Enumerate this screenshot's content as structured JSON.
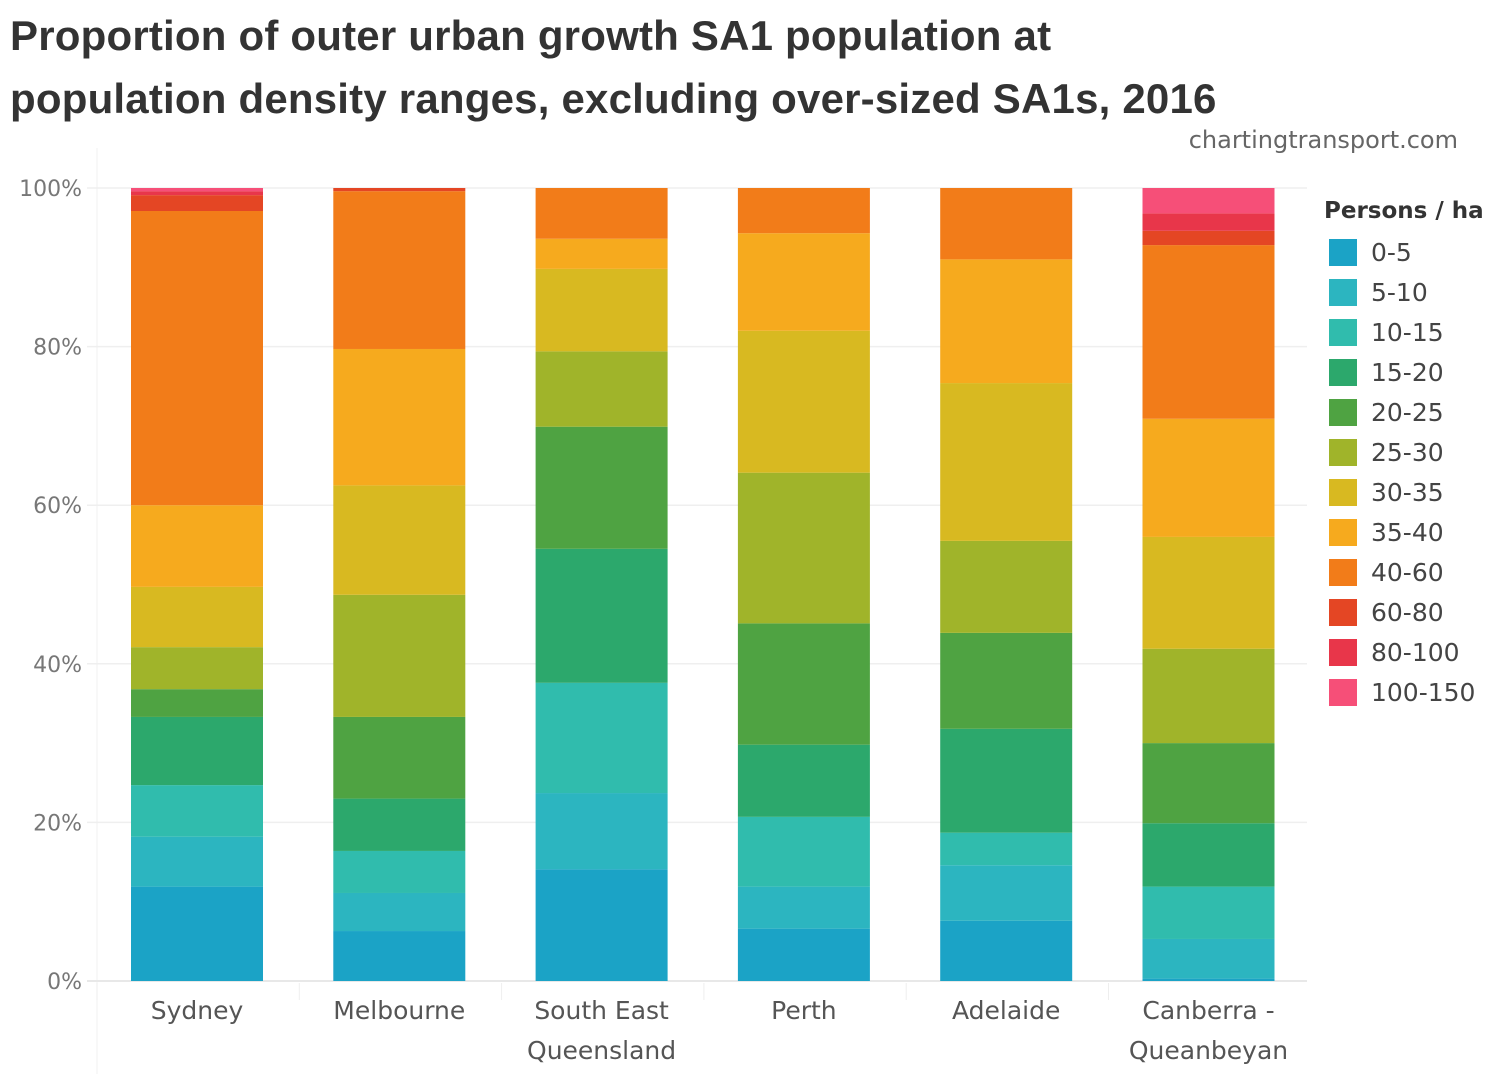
{
  "title_line1": "Proportion of outer urban growth SA1 population at",
  "title_line2": "population density ranges, excluding over-sized SA1s, 2016",
  "watermark": "chartingtransport.com",
  "chart_data": {
    "type": "bar",
    "stacked": true,
    "normalized": true,
    "title": "Proportion of outer urban growth SA1 population at population density ranges, excluding over-sized SA1s, 2016",
    "xlabel": "",
    "ylabel": "",
    "ylim": [
      0,
      100
    ],
    "yticks": [
      0,
      20,
      40,
      60,
      80,
      100
    ],
    "ytick_labels": [
      "0%",
      "20%",
      "40%",
      "60%",
      "80%",
      "100%"
    ],
    "grid": true,
    "legend_title": "Persons / ha",
    "legend_position": "right",
    "categories": [
      [
        "Sydney"
      ],
      [
        "Melbourne"
      ],
      [
        "South East",
        "Queensland"
      ],
      [
        "Perth"
      ],
      [
        "Adelaide"
      ],
      [
        "Canberra -",
        "Queanbeyan"
      ]
    ],
    "series": [
      {
        "name": "0-5",
        "color": "#1ba3c6",
        "values": [
          11.9,
          6.3,
          14.1,
          6.6,
          7.6,
          0.3
        ]
      },
      {
        "name": "5-10",
        "color": "#2cb5c0",
        "values": [
          6.3,
          4.8,
          9.6,
          5.3,
          7.0,
          5.0
        ]
      },
      {
        "name": "10-15",
        "color": "#30bcad",
        "values": [
          6.5,
          5.3,
          13.9,
          8.8,
          4.1,
          6.6
        ]
      },
      {
        "name": "15-20",
        "color": "#2ca86c",
        "values": [
          8.6,
          6.6,
          16.9,
          9.1,
          13.1,
          8.0
        ]
      },
      {
        "name": "20-25",
        "color": "#4fa342",
        "values": [
          3.5,
          10.3,
          15.4,
          15.3,
          12.1,
          10.1
        ]
      },
      {
        "name": "25-30",
        "color": "#a0b42a",
        "values": [
          5.3,
          15.4,
          9.5,
          19.0,
          11.6,
          11.9
        ]
      },
      {
        "name": "30-35",
        "color": "#d8b921",
        "values": [
          7.6,
          13.8,
          10.4,
          17.9,
          19.9,
          14.1
        ]
      },
      {
        "name": "35-40",
        "color": "#f6aa1e",
        "values": [
          10.3,
          17.2,
          3.8,
          12.3,
          15.6,
          14.9
        ]
      },
      {
        "name": "40-60",
        "color": "#f27c19",
        "values": [
          37.1,
          19.9,
          6.4,
          5.7,
          9.0,
          21.9
        ]
      },
      {
        "name": "60-80",
        "color": "#e44624",
        "values": [
          2.0,
          0.4,
          0,
          0,
          0,
          1.8
        ]
      },
      {
        "name": "80-100",
        "color": "#e8364a",
        "values": [
          0.5,
          0,
          0,
          0,
          0,
          2.2
        ]
      },
      {
        "name": "100-150",
        "color": "#f64f78",
        "values": [
          0.4,
          0,
          0,
          0,
          0,
          3.2
        ]
      }
    ]
  }
}
